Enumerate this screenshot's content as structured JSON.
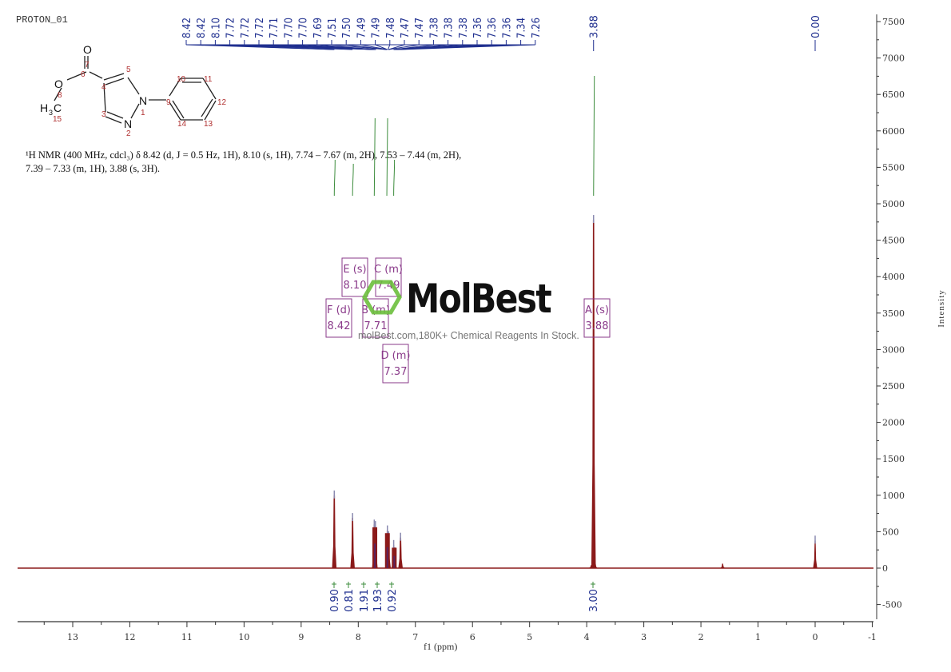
{
  "header": {
    "experiment_title": "PROTON_01"
  },
  "nmr_description": "¹H NMR (400 MHz, cdcl₃) δ 8.42 (d, J = 0.5 Hz, 1H), 8.10 (s, 1H), 7.74 – 7.67 (m, 2H), 7.53 – 7.44 (m, 2H), 7.39 – 7.33 (m, 1H), 3.88 (s, 3H).",
  "molecule": {
    "atoms": [
      {
        "label": "O",
        "num": "7"
      },
      {
        "label": "C",
        "num": "6"
      },
      {
        "label": "O",
        "num": "8"
      },
      {
        "label": "H3C",
        "num": "15"
      },
      {
        "label": "C",
        "num": "4"
      },
      {
        "label": "C",
        "num": "5"
      },
      {
        "label": "C",
        "num": "3"
      },
      {
        "label": "N",
        "num": "1"
      },
      {
        "label": "N",
        "num": "2"
      },
      {
        "label": "C",
        "num": "9"
      },
      {
        "label": "C",
        "num": "10"
      },
      {
        "label": "C",
        "num": "11"
      },
      {
        "label": "C",
        "num": "12"
      },
      {
        "label": "C",
        "num": "13"
      },
      {
        "label": "C",
        "num": "14"
      }
    ]
  },
  "watermark": {
    "logo": "MolBest",
    "tagline": "molBest.com,180K+ Chemical Reagents In Stock."
  },
  "colors": {
    "spectrum": "#8b1a1a",
    "peak_labels": "#1f2f8f",
    "integral": "#3c8c3c",
    "multiplet_box": "#8a3a8a",
    "logo_green": "#6cbf3c"
  },
  "chart_data": {
    "type": "line",
    "title": "PROTON_01",
    "xlabel": "f1 (ppm)",
    "ylabel": "Intensity",
    "xlim": [
      14,
      -1
    ],
    "ylim": [
      -700,
      7600
    ],
    "x_ticks": [
      13,
      12,
      11,
      10,
      9,
      8,
      7,
      6,
      5,
      4,
      3,
      2,
      1,
      0,
      -1
    ],
    "y_ticks": [
      -500,
      0,
      500,
      1000,
      1500,
      2000,
      2500,
      3000,
      3500,
      4000,
      4500,
      5000,
      5500,
      6000,
      6500,
      7000,
      7500
    ],
    "grid": false,
    "peaks": [
      {
        "ppm": 8.42,
        "intensity": 1000
      },
      {
        "ppm": 8.1,
        "intensity": 690
      },
      {
        "ppm": 7.72,
        "intensity": 600
      },
      {
        "ppm": 7.7,
        "intensity": 580
      },
      {
        "ppm": 7.49,
        "intensity": 520
      },
      {
        "ppm": 7.47,
        "intensity": 440
      },
      {
        "ppm": 7.38,
        "intensity": 320
      },
      {
        "ppm": 7.36,
        "intensity": 220
      },
      {
        "ppm": 7.26,
        "intensity": 420
      },
      {
        "ppm": 3.88,
        "intensity": 4780
      },
      {
        "ppm": 3.85,
        "intensity": 60
      },
      {
        "ppm": 3.92,
        "intensity": 40
      },
      {
        "ppm": 1.62,
        "intensity": 60
      },
      {
        "ppm": 0.0,
        "intensity": 380
      }
    ],
    "peak_labels": [
      "8.42",
      "8.42",
      "8.10",
      "7.72",
      "7.72",
      "7.72",
      "7.71",
      "7.70",
      "7.70",
      "7.69",
      "7.51",
      "7.50",
      "7.49",
      "7.49",
      "7.48",
      "7.47",
      "7.47",
      "7.38",
      "7.38",
      "7.38",
      "7.36",
      "7.36",
      "7.36",
      "7.34",
      "7.26",
      "3.88",
      "0.00"
    ],
    "multiplets": [
      {
        "id": "F",
        "type": "d",
        "shift": "8.42"
      },
      {
        "id": "E",
        "type": "s",
        "shift": "8.10"
      },
      {
        "id": "B",
        "type": "m",
        "shift": "7.71"
      },
      {
        "id": "C",
        "type": "m",
        "shift": "7.49"
      },
      {
        "id": "D",
        "type": "m",
        "shift": "7.37"
      },
      {
        "id": "A",
        "type": "s",
        "shift": "3.88"
      }
    ],
    "integrals": [
      {
        "ppm": 8.42,
        "value": "0.90"
      },
      {
        "ppm": 8.1,
        "value": "0.81"
      },
      {
        "ppm": 7.71,
        "value": "1.91"
      },
      {
        "ppm": 7.49,
        "value": "1.93"
      },
      {
        "ppm": 7.37,
        "value": "0.92"
      },
      {
        "ppm": 3.88,
        "value": "3.00"
      }
    ]
  }
}
